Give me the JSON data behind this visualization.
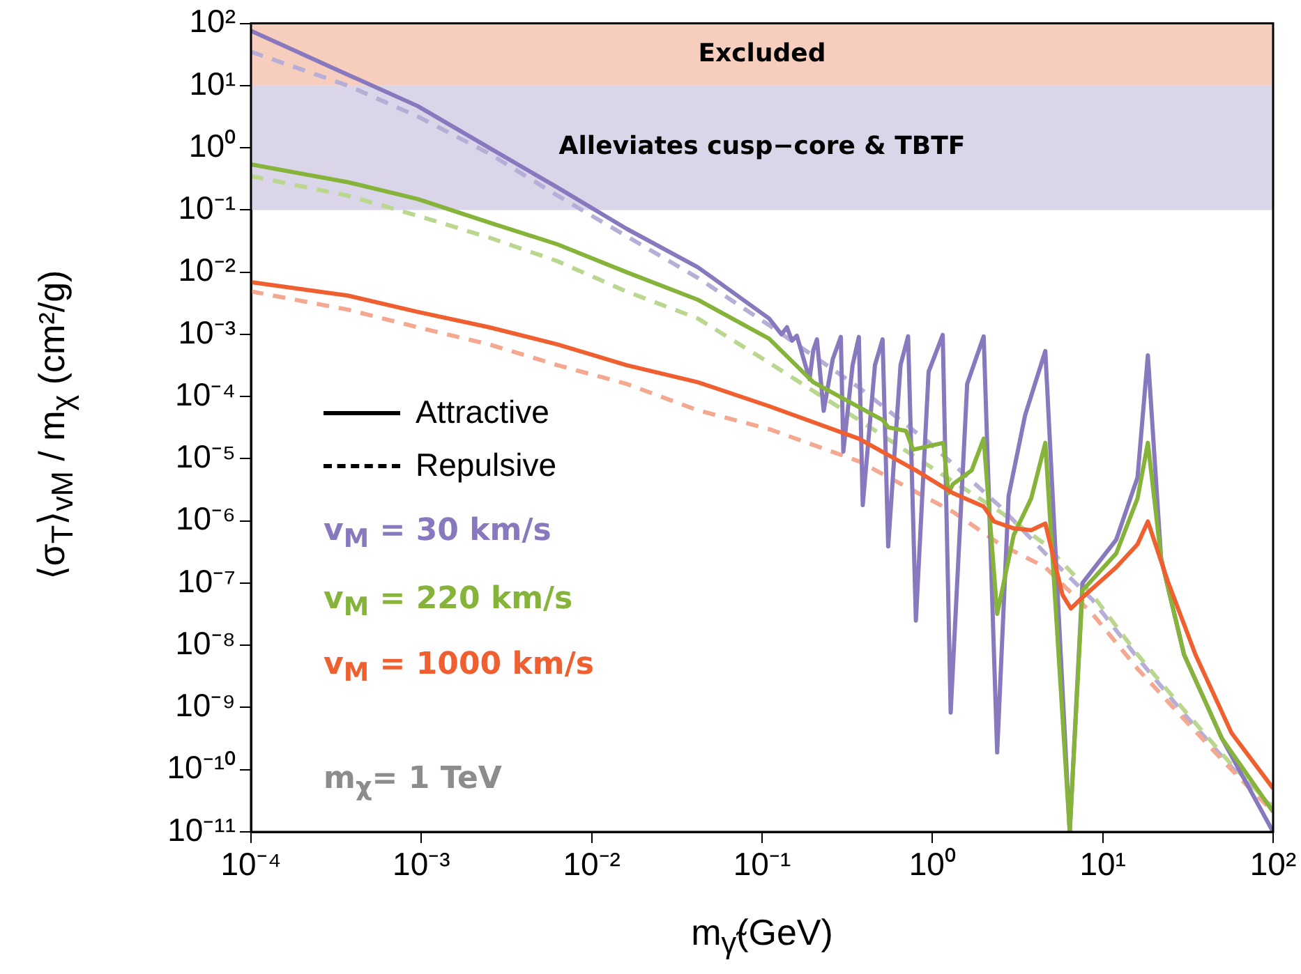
{
  "chart_data": {
    "type": "line",
    "log": "xy",
    "grid": false,
    "marker": "none",
    "xlabel": "m$_{γ̃}$(GeV)",
    "ylabel": "⟨σ$_{T}$⟩$_{vM}$ / m$_{χ}$ (cm²/g)",
    "xlim": [
      0.0001,
      100
    ],
    "ylim": [
      1e-11,
      100
    ],
    "xticks": [
      {
        "value": 0.0001,
        "label": "10⁻⁴"
      },
      {
        "value": 0.001,
        "label": "10⁻³"
      },
      {
        "value": 0.01,
        "label": "10⁻²"
      },
      {
        "value": 0.1,
        "label": "10⁻¹"
      },
      {
        "value": 1,
        "label": "10⁰"
      },
      {
        "value": 10,
        "label": "10¹"
      },
      {
        "value": 100,
        "label": "10²"
      }
    ],
    "yticks": [
      {
        "value": 1e-11,
        "label": "10⁻¹¹"
      },
      {
        "value": 1e-10,
        "label": "10⁻¹⁰"
      },
      {
        "value": 1e-09,
        "label": "10⁻⁹"
      },
      {
        "value": 1e-08,
        "label": "10⁻⁸"
      },
      {
        "value": 1e-07,
        "label": "10⁻⁷"
      },
      {
        "value": 1e-06,
        "label": "10⁻⁶"
      },
      {
        "value": 1e-05,
        "label": "10⁻⁵"
      },
      {
        "value": 0.0001,
        "label": "10⁻⁴"
      },
      {
        "value": 0.001,
        "label": "10⁻³"
      },
      {
        "value": 0.01,
        "label": "10⁻²"
      },
      {
        "value": 0.1,
        "label": "10⁻¹"
      },
      {
        "value": 1,
        "label": "10⁰"
      },
      {
        "value": 10,
        "label": "10¹"
      },
      {
        "value": 100,
        "label": "10²"
      }
    ],
    "bands": [
      {
        "axis": "y",
        "from": 10,
        "to": 100,
        "label": "Excluded",
        "color": "#f7cdbe"
      },
      {
        "axis": "y",
        "from": 0.1,
        "to": 10,
        "label": "Alleviates cusp−core & TBTF",
        "color": "#dad5e9"
      }
    ],
    "annotations": [
      "Attractive",
      "Repulsive",
      "m$_{χ}$= 1 TeV"
    ],
    "series": [
      {
        "color": "#b7aed8",
        "line_style": "dashed",
        "x": [
          0.0001,
          0.00037,
          0.00095,
          0.0025,
          0.0063,
          0.016,
          0.042,
          0.11,
          0.37,
          0.96,
          2.5,
          4.6,
          8.7,
          16,
          30,
          57,
          100
        ],
        "values": [
          35,
          10,
          3.2,
          0.81,
          0.17,
          0.038,
          0.0081,
          0.0014,
          0.00014,
          1.8e-05,
          1.7e-06,
          3e-07,
          5.4e-08,
          6.3e-09,
          7.9e-10,
          1.1e-10,
          2.4e-11
        ]
      },
      {
        "color": "#bad78f",
        "line_style": "dashed",
        "x": [
          0.0001,
          0.00037,
          0.00095,
          0.0025,
          0.0063,
          0.016,
          0.042,
          0.11,
          0.37,
          0.96,
          2.5,
          4.6,
          8.7,
          16,
          30,
          57,
          100
        ],
        "values": [
          0.35,
          0.17,
          0.081,
          0.036,
          0.015,
          0.0049,
          0.0018,
          0.00035,
          4.2e-05,
          7.6e-06,
          1.4e-06,
          4.2e-07,
          6.5e-08,
          7.1e-09,
          9.1e-10,
          1.2e-10,
          2.5e-11
        ]
      },
      {
        "color": "#f5a890",
        "line_style": "dashed",
        "x": [
          0.0001,
          0.00037,
          0.00095,
          0.0025,
          0.0063,
          0.016,
          0.042,
          0.11,
          0.37,
          1.32,
          2.5,
          4.6,
          8.7,
          16,
          30,
          57,
          100
        ],
        "values": [
          0.0049,
          0.0025,
          0.0013,
          0.00069,
          0.00032,
          0.00016,
          6e-05,
          3e-05,
          9.1e-06,
          1.4e-06,
          4.2e-07,
          1.8e-07,
          3.2e-08,
          4.2e-09,
          6.5e-10,
          1e-10,
          2.1e-11
        ]
      },
      {
        "name": "v$_{M}$ = 30 km/s",
        "color": "#8878bd",
        "line_style": "solid",
        "x": [
          0.0001,
          0.00037,
          0.00095,
          0.0025,
          0.0063,
          0.016,
          0.042,
          0.11,
          0.13,
          0.14,
          0.15,
          0.16,
          0.19,
          0.2,
          0.21,
          0.23,
          0.26,
          0.29,
          0.3,
          0.34,
          0.37,
          0.39,
          0.46,
          0.51,
          0.55,
          0.65,
          0.72,
          0.8,
          0.95,
          1.15,
          1.28,
          1.6,
          2.0,
          2.4,
          2.8,
          3.5,
          4.6,
          6.4,
          7.6,
          12,
          16,
          18.4,
          22,
          30,
          50,
          100
        ],
        "values": [
          76,
          15,
          4.7,
          1.0,
          0.23,
          0.05,
          0.012,
          0.0018,
          0.001,
          0.0013,
          0.00079,
          0.00095,
          0.00019,
          0.00056,
          0.00083,
          5.9e-05,
          0.0004,
          0.00091,
          1.3e-05,
          0.00032,
          0.00091,
          1.8e-06,
          0.00032,
          0.00083,
          3.9e-07,
          0.00032,
          0.00093,
          2.5e-08,
          0.00025,
          0.00098,
          8.3e-10,
          0.00016,
          0.00093,
          1.9e-10,
          2.5e-06,
          5e-05,
          0.00054,
          1e-11,
          1e-07,
          5e-07,
          5e-06,
          0.00046,
          2.5e-07,
          7.1e-09,
          3.2e-10,
          1e-11
        ]
      },
      {
        "name": "v$_{M}$ = 220 km/s",
        "color": "#86b33a",
        "line_style": "solid",
        "x": [
          0.0001,
          0.00037,
          0.00095,
          0.0025,
          0.0063,
          0.016,
          0.042,
          0.11,
          0.2,
          0.51,
          0.55,
          0.7,
          0.77,
          1.16,
          1.24,
          1.32,
          1.7,
          2.0,
          2.4,
          3.0,
          3.8,
          4.6,
          6.4,
          7.6,
          12,
          16,
          18.4,
          22,
          30,
          50,
          100
        ],
        "values": [
          0.54,
          0.28,
          0.15,
          0.063,
          0.028,
          0.01,
          0.0036,
          0.00085,
          0.00017,
          4.2e-05,
          3.2e-05,
          2.8e-05,
          1.4e-05,
          1.8e-05,
          2.8e-06,
          3.9e-06,
          6.5e-06,
          2.1e-05,
          3.2e-08,
          5.9e-07,
          2.3e-06,
          1.8e-05,
          1e-11,
          7.6e-08,
          3e-07,
          2.3e-06,
          1.8e-05,
          2.5e-07,
          7.1e-09,
          3.2e-10,
          2.1e-11
        ]
      },
      {
        "name": "v$_{M}$ = 1000 km/s",
        "color": "#ef5f30",
        "line_style": "solid",
        "x": [
          0.0001,
          0.00037,
          0.00095,
          0.0025,
          0.0063,
          0.016,
          0.042,
          0.11,
          0.37,
          0.8,
          1.32,
          2.0,
          2.3,
          3.0,
          3.8,
          4.6,
          5.8,
          6.5,
          7.6,
          12,
          16,
          18.4,
          24,
          35,
          57,
          100
        ],
        "values": [
          0.0069,
          0.0042,
          0.0023,
          0.0013,
          0.00069,
          0.00032,
          0.00017,
          7e-05,
          2.1e-05,
          6.5e-06,
          2.8e-06,
          1.7e-06,
          9.8e-07,
          7.6e-07,
          7.1e-07,
          9.1e-07,
          6.5e-08,
          3.9e-08,
          5.9e-08,
          1.8e-07,
          4.2e-07,
          9.8e-07,
          1.1e-07,
          7.1e-09,
          3.9e-10,
          5e-11
        ]
      }
    ]
  }
}
